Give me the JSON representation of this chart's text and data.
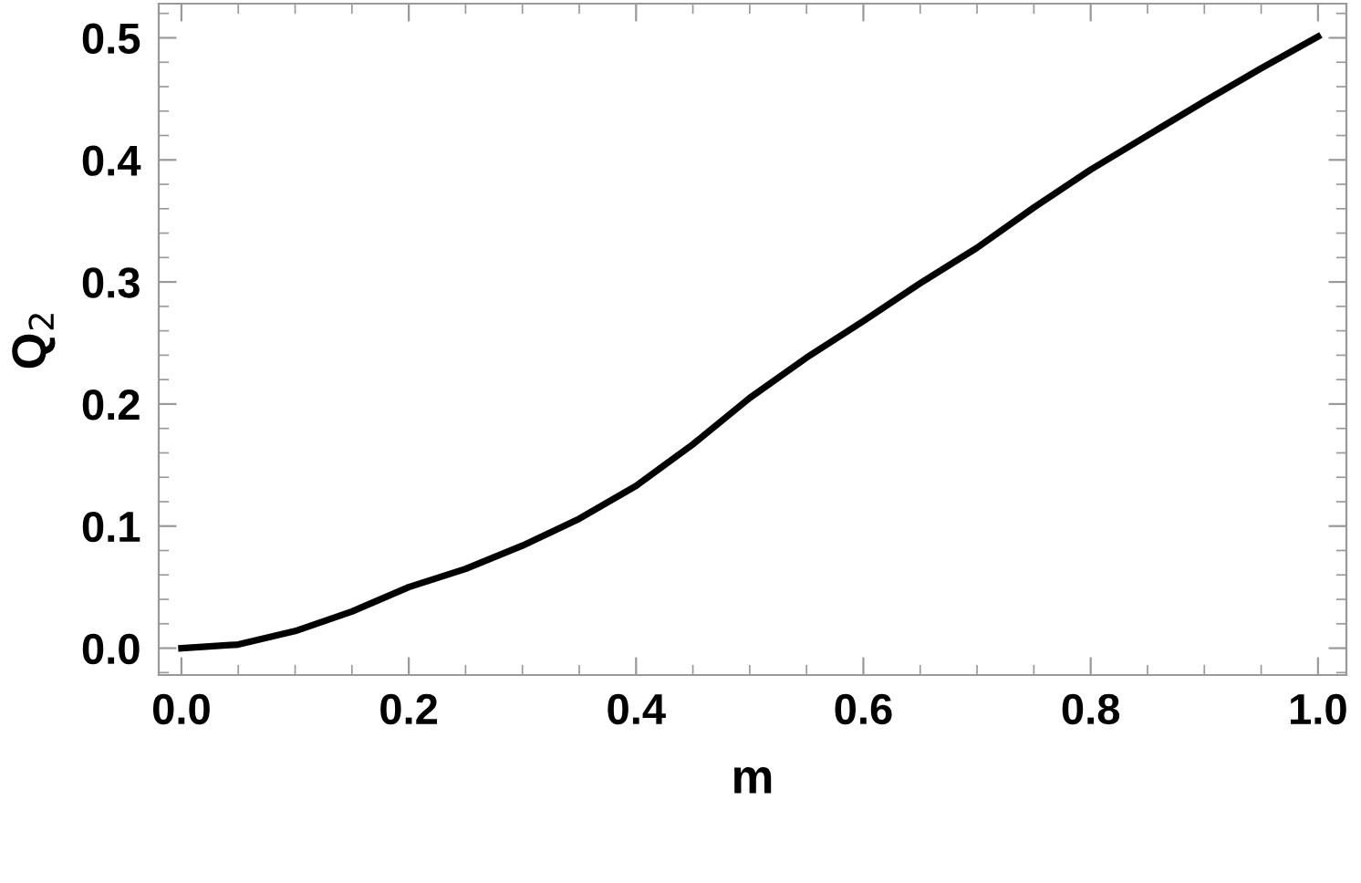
{
  "chart_data": {
    "type": "line",
    "xlabel": "m",
    "ylabel": "Q$_{2}$",
    "x": [
      0,
      0.05,
      0.1,
      0.15,
      0.2,
      0.25,
      0.3,
      0.35,
      0.4,
      0.45,
      0.5,
      0.55,
      0.6,
      0.65,
      0.7,
      0.75,
      0.8,
      0.85,
      0.9,
      0.95,
      1.0
    ],
    "series": [
      {
        "color": "#000000",
        "values": [
          0,
          0.003,
          0.014,
          0.03,
          0.05,
          0.065,
          0.084,
          0.106,
          0.133,
          0.167,
          0.205,
          0.238,
          0.268,
          0.299,
          0.328,
          0.361,
          0.392,
          0.42,
          0.448,
          0.475,
          0.501
        ]
      }
    ],
    "xlim": [
      -0.02,
      1.025
    ],
    "ylim": [
      -0.022,
      0.528
    ],
    "xticks": [
      {
        "value": 0,
        "label": "0.0"
      },
      0.2,
      0.4,
      0.6,
      0.8,
      {
        "value": 1,
        "label": "1.0"
      }
    ],
    "yticks": [
      {
        "value": 0,
        "label": "0.0"
      },
      0.1,
      0.2,
      0.3,
      0.4,
      0.5
    ],
    "grid": false,
    "marker": "none",
    "line_style": "solid"
  }
}
